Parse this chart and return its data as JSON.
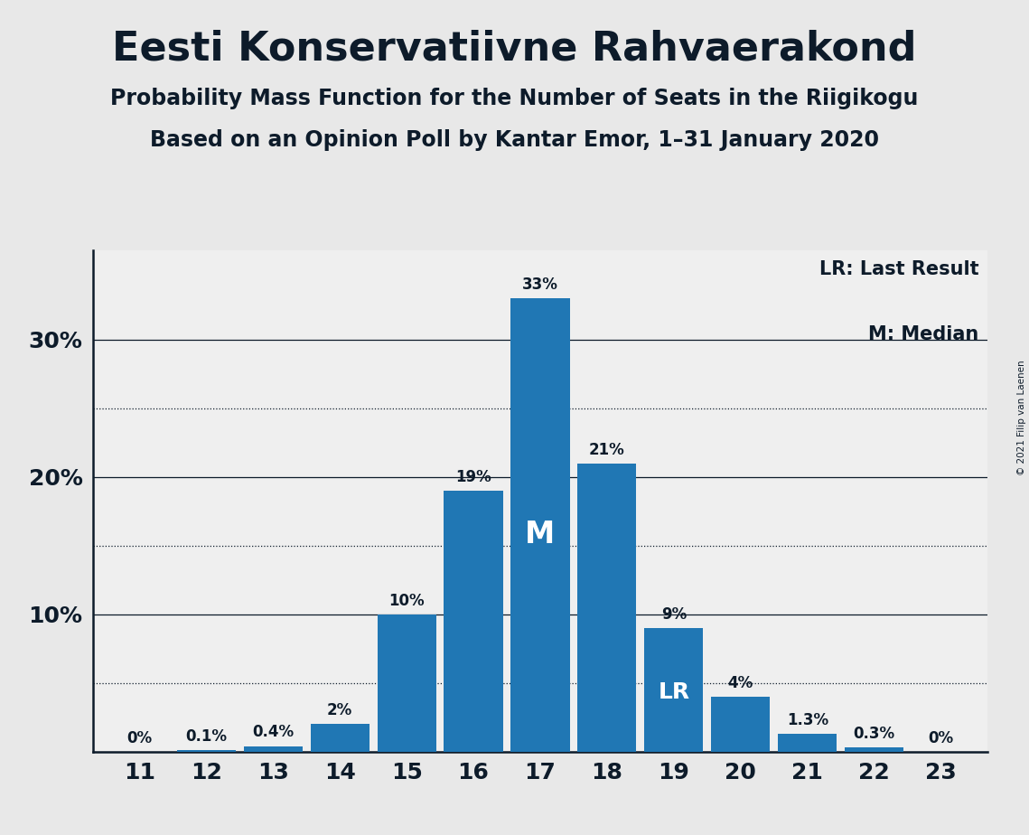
{
  "title": "Eesti Konservatiivne Rahvaerakond",
  "subtitle1": "Probability Mass Function for the Number of Seats in the Riigikogu",
  "subtitle2": "Based on an Opinion Poll by Kantar Emor, 1–31 January 2020",
  "copyright": "© 2021 Filip van Laenen",
  "seats": [
    11,
    12,
    13,
    14,
    15,
    16,
    17,
    18,
    19,
    20,
    21,
    22,
    23
  ],
  "probabilities": [
    0.0,
    0.001,
    0.004,
    0.02,
    0.1,
    0.19,
    0.33,
    0.21,
    0.09,
    0.04,
    0.013,
    0.003,
    0.0
  ],
  "labels": [
    "0%",
    "0.1%",
    "0.4%",
    "2%",
    "10%",
    "19%",
    "33%",
    "21%",
    "9%",
    "4%",
    "1.3%",
    "0.3%",
    "0%"
  ],
  "bar_color": "#2077b4",
  "median_seat": 17,
  "lr_seat": 19,
  "background_color": "#e8e8e8",
  "plot_background_color": "#efefef",
  "text_color": "#0d1b2a",
  "solid_gridlines": [
    0.1,
    0.2,
    0.3
  ],
  "dotted_gridlines": [
    0.05,
    0.15,
    0.25
  ],
  "ylim": [
    0,
    0.365
  ],
  "legend_lr": "LR: Last Result",
  "legend_m": "M: Median"
}
